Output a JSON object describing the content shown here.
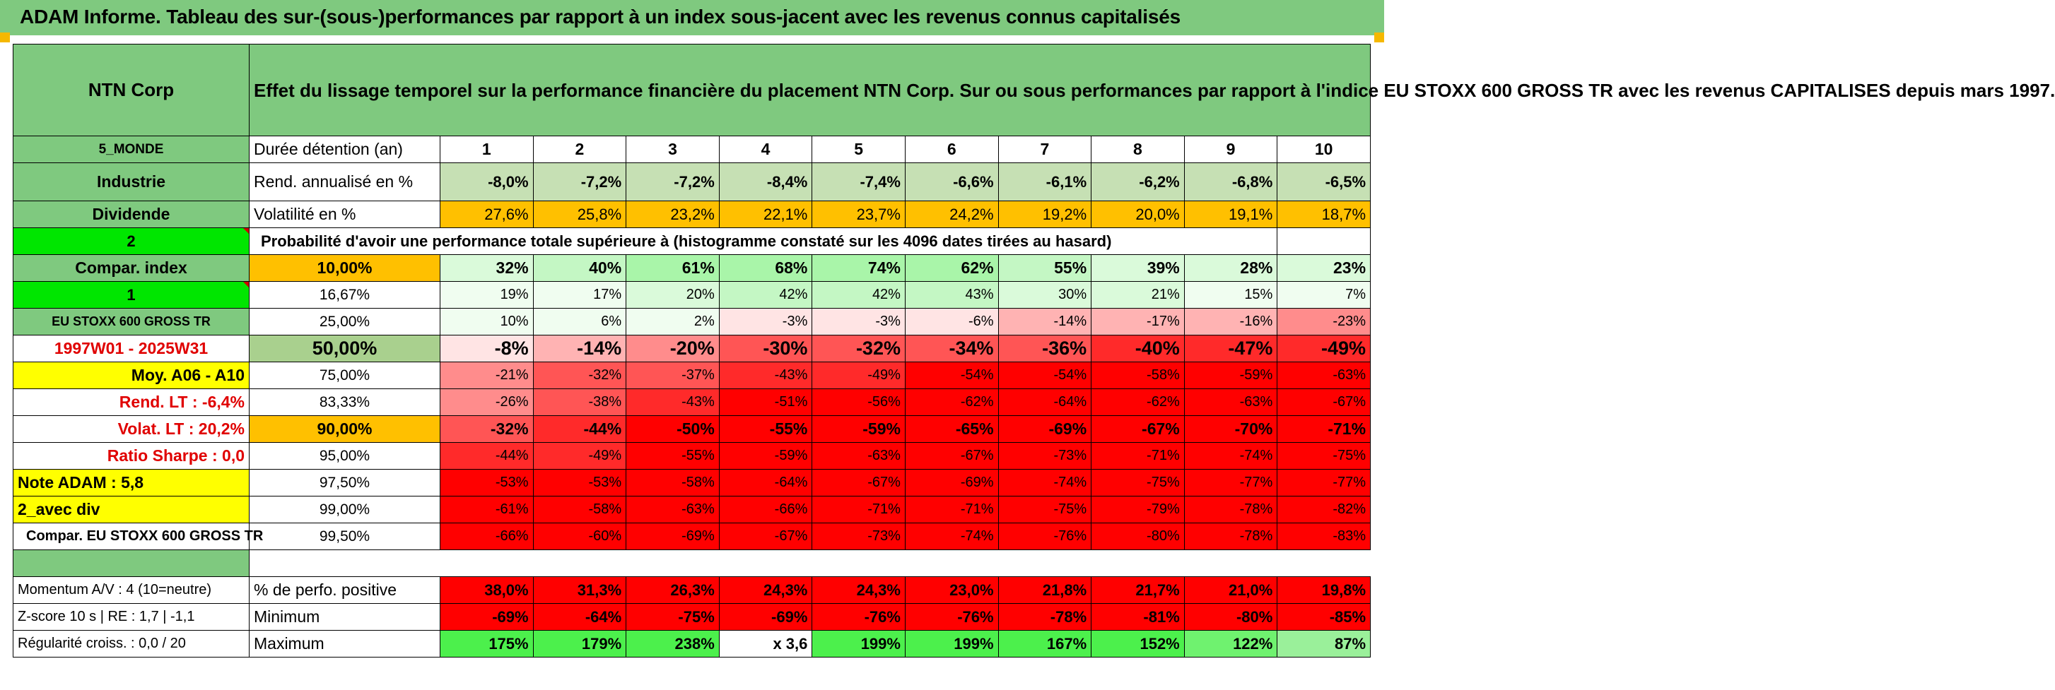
{
  "banner": {
    "title": "ADAM Informe. Tableau des sur-(sous-)performances par rapport à un index sous-jacent avec les revenus connus capitalisés"
  },
  "left": {
    "name": "NTN Corp",
    "region": "5_MONDE",
    "sector": "Industrie",
    "dividend": "Dividende",
    "code2": "2",
    "compar_label": "Compar. index",
    "code1": "1",
    "index_name": "EU STOXX 600 GROSS TR",
    "period": "1997W01 - 2025W31",
    "moy": "Moy. A06 - A10",
    "rend_lt": "Rend. LT :    -6,4%",
    "volat_lt": "Volat. LT :    20,2%",
    "sharpe": "Ratio Sharpe :     0,0",
    "note": "Note ADAM : 5,8",
    "avec_div": "2_avec div",
    "compar_full": "Compar. EU STOXX 600 GROSS TR",
    "momentum": "Momentum A/V : 4 (10=neutre)",
    "zscore": "Z-score 10 s | RE : 1,7 | -1,1",
    "regularite": "Régularité croiss. : 0,0 / 20"
  },
  "description": "Effet du lissage temporel sur la performance financière du placement NTN Corp. Sur ou sous performances par rapport à l'indice EU STOXX 600 GROSS TR avec les revenus CAPITALISES depuis mars 1997.",
  "header": {
    "duration_label": "Durée détention (an)",
    "years": [
      "1",
      "2",
      "3",
      "4",
      "5",
      "6",
      "7",
      "8",
      "9",
      "10"
    ],
    "rend_label": "Rend. annualisé en %",
    "rend": [
      "-8,0%",
      "-7,2%",
      "-7,2%",
      "-8,4%",
      "-7,4%",
      "-6,6%",
      "-6,1%",
      "-6,2%",
      "-6,8%",
      "-6,5%"
    ],
    "vol_label": "Volatilité en %",
    "vol": [
      "27,6%",
      "25,8%",
      "23,2%",
      "22,1%",
      "23,7%",
      "24,2%",
      "19,2%",
      "20,0%",
      "19,1%",
      "18,7%"
    ],
    "prob_title": "Probabilité d'avoir une performance totale supérieure à (histogramme constaté sur les 4096 dates tirées au hasard)"
  },
  "percentiles": [
    {
      "p": "10,00%",
      "v": [
        "32%",
        "40%",
        "61%",
        "68%",
        "74%",
        "62%",
        "55%",
        "39%",
        "28%",
        "23%"
      ]
    },
    {
      "p": "16,67%",
      "v": [
        "19%",
        "17%",
        "20%",
        "42%",
        "42%",
        "43%",
        "30%",
        "21%",
        "15%",
        "7%"
      ]
    },
    {
      "p": "25,00%",
      "v": [
        "10%",
        "6%",
        "2%",
        "-3%",
        "-3%",
        "-6%",
        "-14%",
        "-17%",
        "-16%",
        "-23%"
      ]
    },
    {
      "p": "50,00%",
      "v": [
        "-8%",
        "-14%",
        "-20%",
        "-30%",
        "-32%",
        "-34%",
        "-36%",
        "-40%",
        "-47%",
        "-49%"
      ]
    },
    {
      "p": "75,00%",
      "v": [
        "-21%",
        "-32%",
        "-37%",
        "-43%",
        "-49%",
        "-54%",
        "-54%",
        "-58%",
        "-59%",
        "-63%"
      ]
    },
    {
      "p": "83,33%",
      "v": [
        "-26%",
        "-38%",
        "-43%",
        "-51%",
        "-56%",
        "-62%",
        "-64%",
        "-62%",
        "-63%",
        "-67%"
      ]
    },
    {
      "p": "90,00%",
      "v": [
        "-32%",
        "-44%",
        "-50%",
        "-55%",
        "-59%",
        "-65%",
        "-69%",
        "-67%",
        "-70%",
        "-71%"
      ]
    },
    {
      "p": "95,00%",
      "v": [
        "-44%",
        "-49%",
        "-55%",
        "-59%",
        "-63%",
        "-67%",
        "-73%",
        "-71%",
        "-74%",
        "-75%"
      ]
    },
    {
      "p": "97,50%",
      "v": [
        "-53%",
        "-53%",
        "-58%",
        "-64%",
        "-67%",
        "-69%",
        "-74%",
        "-75%",
        "-77%",
        "-77%"
      ]
    },
    {
      "p": "99,00%",
      "v": [
        "-61%",
        "-58%",
        "-63%",
        "-66%",
        "-71%",
        "-71%",
        "-75%",
        "-79%",
        "-78%",
        "-82%"
      ]
    },
    {
      "p": "99,50%",
      "v": [
        "-66%",
        "-60%",
        "-69%",
        "-67%",
        "-73%",
        "-74%",
        "-76%",
        "-80%",
        "-78%",
        "-83%"
      ]
    }
  ],
  "stats": [
    {
      "label": "% de perfo. positive",
      "v": [
        "38,0%",
        "31,3%",
        "26,3%",
        "24,3%",
        "24,3%",
        "23,0%",
        "21,8%",
        "21,7%",
        "21,0%",
        "19,8%"
      ]
    },
    {
      "label": "Minimum",
      "v": [
        "-69%",
        "-64%",
        "-75%",
        "-69%",
        "-76%",
        "-76%",
        "-78%",
        "-81%",
        "-80%",
        "-85%"
      ]
    },
    {
      "label": "Maximum",
      "v": [
        "175%",
        "179%",
        "238%",
        "x 3,6",
        "199%",
        "199%",
        "167%",
        "152%",
        "122%",
        "87%"
      ]
    }
  ],
  "colors": {
    "green_header": "#7fc97f",
    "bright_green": "#00e600",
    "yellow": "#ffff00",
    "orange": "#ffc000",
    "red_text": "#e00000",
    "deep_red": "#ff0000"
  }
}
